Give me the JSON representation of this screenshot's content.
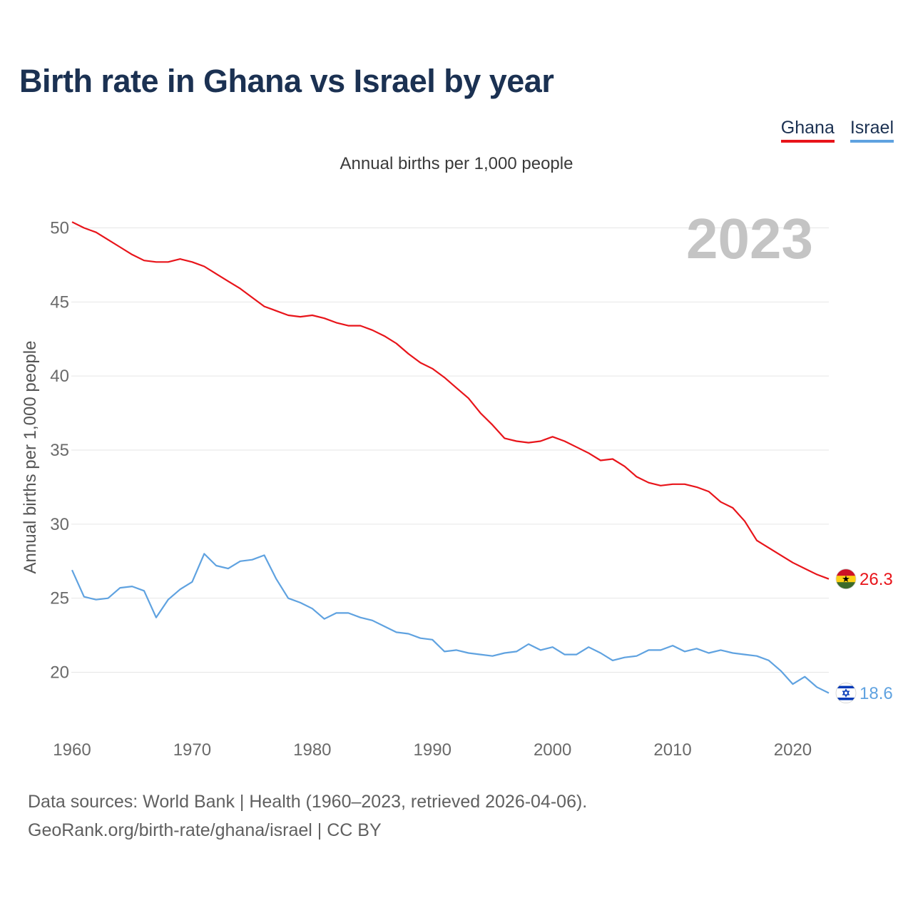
{
  "title": "Birth rate in Ghana vs Israel by year",
  "legend": {
    "ghana": "Ghana",
    "israel": "Israel"
  },
  "subtitle": "Annual births per 1,000 people",
  "footer": {
    "line1": "Data sources: World Bank | Health (1960–2023, retrieved 2026-04-06).",
    "line2": "GeoRank.org/birth-rate/ghana/israel | CC BY"
  },
  "chart_data": {
    "type": "line",
    "title": "Birth rate in Ghana vs Israel by year",
    "ylabel": "Annual births per 1,000 people",
    "xlabel": "",
    "year_label": "2023",
    "xlim": [
      1960,
      2023
    ],
    "ylim": [
      17,
      52
    ],
    "x_ticks": [
      1960,
      1970,
      1980,
      1990,
      2000,
      2010,
      2020
    ],
    "y_ticks": [
      20,
      25,
      30,
      35,
      40,
      45,
      50
    ],
    "grid": true,
    "x": [
      1960,
      1961,
      1962,
      1963,
      1964,
      1965,
      1966,
      1967,
      1968,
      1969,
      1970,
      1971,
      1972,
      1973,
      1974,
      1975,
      1976,
      1977,
      1978,
      1979,
      1980,
      1981,
      1982,
      1983,
      1984,
      1985,
      1986,
      1987,
      1988,
      1989,
      1990,
      1991,
      1992,
      1993,
      1994,
      1995,
      1996,
      1997,
      1998,
      1999,
      2000,
      2001,
      2002,
      2003,
      2004,
      2005,
      2006,
      2007,
      2008,
      2009,
      2010,
      2011,
      2012,
      2013,
      2014,
      2015,
      2016,
      2017,
      2018,
      2019,
      2020,
      2021,
      2022,
      2023
    ],
    "series": [
      {
        "name": "Ghana",
        "color": "#e8141a",
        "end_label": "26.3",
        "values": [
          50.4,
          50.0,
          49.7,
          49.2,
          48.7,
          48.2,
          47.8,
          47.7,
          47.7,
          47.9,
          47.7,
          47.4,
          46.9,
          46.4,
          45.9,
          45.3,
          44.7,
          44.4,
          44.1,
          44.0,
          44.1,
          43.9,
          43.6,
          43.4,
          43.4,
          43.1,
          42.7,
          42.2,
          41.5,
          40.9,
          40.5,
          39.9,
          39.2,
          38.5,
          37.5,
          36.7,
          35.8,
          35.6,
          35.5,
          35.6,
          35.9,
          35.6,
          35.2,
          34.8,
          34.3,
          34.4,
          33.9,
          33.2,
          32.8,
          32.6,
          32.7,
          32.7,
          32.5,
          32.2,
          31.5,
          31.1,
          30.2,
          28.9,
          28.4,
          27.9,
          27.4,
          27.0,
          26.6,
          26.3
        ]
      },
      {
        "name": "Israel",
        "color": "#5fa2e0",
        "end_label": "18.6",
        "values": [
          26.9,
          25.1,
          24.9,
          25.0,
          25.7,
          25.8,
          25.5,
          23.7,
          24.9,
          25.6,
          26.1,
          28.0,
          27.2,
          27.0,
          27.5,
          27.6,
          27.9,
          26.3,
          25.0,
          24.7,
          24.3,
          23.6,
          24.0,
          24.0,
          23.7,
          23.5,
          23.1,
          22.7,
          22.6,
          22.3,
          22.2,
          21.4,
          21.5,
          21.3,
          21.2,
          21.1,
          21.3,
          21.4,
          21.9,
          21.5,
          21.7,
          21.2,
          21.2,
          21.7,
          21.3,
          20.8,
          21.0,
          21.1,
          21.5,
          21.5,
          21.8,
          21.4,
          21.6,
          21.3,
          21.5,
          21.3,
          21.2,
          21.1,
          20.8,
          20.1,
          19.2,
          19.7,
          19.0,
          18.6
        ]
      }
    ]
  }
}
